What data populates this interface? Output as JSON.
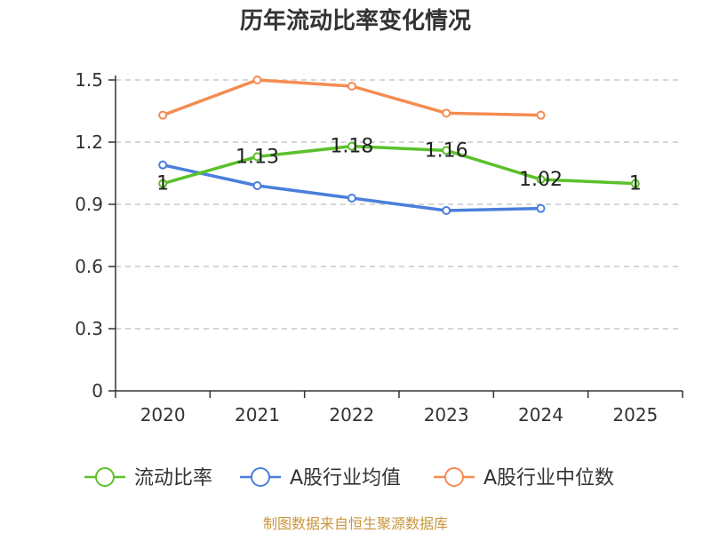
{
  "chart_data": {
    "type": "line",
    "title": "历年流动比率变化情况",
    "categories": [
      "2020",
      "2021",
      "2022",
      "2023",
      "2024",
      "2025"
    ],
    "ylim": [
      0,
      1.5
    ],
    "yticks": [
      0,
      0.3,
      0.6,
      0.9,
      1.2,
      1.5
    ],
    "ytick_labels": [
      "0",
      "0.3",
      "0.6",
      "0.9",
      "1.2",
      "1.5"
    ],
    "grid": true,
    "legend_position": "bottom",
    "series": [
      {
        "name": "流动比率",
        "color": "#5bc12b",
        "values": [
          1.0,
          1.13,
          1.18,
          1.16,
          1.02,
          1.0
        ],
        "labels": [
          "1",
          "1.13",
          "1.18",
          "1.16",
          "1.02",
          "1"
        ]
      },
      {
        "name": "A股行业均值",
        "color": "#4a7fdb",
        "values": [
          1.09,
          0.99,
          0.93,
          0.87,
          0.88,
          null
        ]
      },
      {
        "name": "A股行业中位数",
        "color": "#f48c52",
        "values": [
          1.33,
          1.5,
          1.47,
          1.34,
          1.33,
          null
        ]
      }
    ],
    "source": "制图数据来自恒生聚源数据库"
  }
}
